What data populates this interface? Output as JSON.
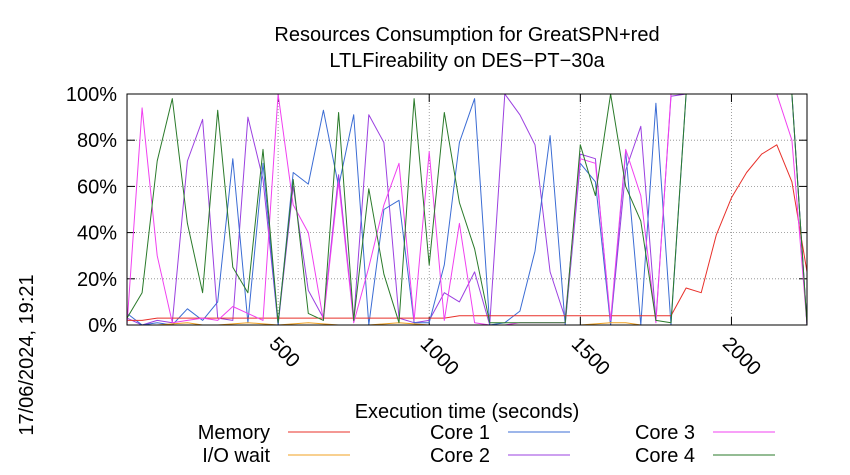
{
  "chart_data": {
    "type": "line",
    "title": "Resources Consumption for GreatSPN+red",
    "subtitle": "LTLFireability on DES−PT−30a",
    "xlabel": "Execution time (seconds)",
    "ylabel": "",
    "side_label": "17/06/2024, 19:21",
    "xlim": [
      0,
      2250
    ],
    "ylim": [
      0,
      100
    ],
    "x_ticks": [
      {
        "value": 500,
        "label": "500"
      },
      {
        "value": 1000,
        "label": "1000"
      },
      {
        "value": 1500,
        "label": "1500"
      },
      {
        "value": 2000,
        "label": "2000"
      }
    ],
    "y_ticks": [
      {
        "value": 0,
        "label": "0%"
      },
      {
        "value": 20,
        "label": "20%"
      },
      {
        "value": 40,
        "label": "40%"
      },
      {
        "value": 60,
        "label": "60%"
      },
      {
        "value": 80,
        "label": "80%"
      },
      {
        "value": 100,
        "label": "100%"
      }
    ],
    "grid": true,
    "legend_position": "bottom",
    "series": [
      {
        "name": "Memory",
        "color": "#e8302a",
        "x": [
          0,
          50,
          100,
          150,
          200,
          250,
          300,
          350,
          400,
          450,
          500,
          550,
          600,
          650,
          700,
          750,
          800,
          850,
          900,
          950,
          1000,
          1050,
          1100,
          1150,
          1200,
          1250,
          1300,
          1350,
          1400,
          1450,
          1500,
          1550,
          1600,
          1650,
          1700,
          1750,
          1800,
          1850,
          1900,
          1950,
          2000,
          2050,
          2100,
          2150,
          2200,
          2250
        ],
        "y": [
          2,
          2,
          3,
          3,
          3,
          3,
          3,
          3,
          3,
          3,
          3,
          3,
          3,
          3,
          3,
          3,
          3,
          3,
          3,
          3,
          3,
          3,
          4,
          4,
          4,
          4,
          4,
          4,
          4,
          4,
          4,
          4,
          4,
          4,
          4,
          4,
          4,
          16,
          14,
          39,
          55,
          66,
          74,
          78,
          62,
          23
        ]
      },
      {
        "name": "I/O wait",
        "color": "#f0a020",
        "x": [
          0,
          100,
          200,
          250,
          300,
          400,
          500,
          600,
          700,
          800,
          900,
          1000,
          1100,
          1200,
          1300,
          1400,
          1500,
          1600,
          1650,
          1700,
          1800,
          1900,
          2000,
          2100,
          2200,
          2250
        ],
        "y": [
          0,
          0,
          1,
          0,
          0,
          1,
          0,
          1,
          0,
          0,
          1,
          0,
          0,
          0,
          0,
          0,
          0,
          1,
          1,
          0,
          0,
          0,
          0,
          0,
          0,
          0
        ]
      },
      {
        "name": "Core 1",
        "color": "#3b6cd4",
        "x": [
          0,
          50,
          100,
          150,
          200,
          250,
          300,
          350,
          400,
          450,
          500,
          550,
          600,
          650,
          700,
          750,
          800,
          850,
          900,
          950,
          1000,
          1050,
          1100,
          1150,
          1200,
          1250,
          1300,
          1350,
          1400,
          1450,
          1500,
          1550,
          1600,
          1650,
          1700,
          1750,
          1800,
          1850,
          1900,
          1950,
          2000,
          2050,
          2100,
          2150,
          2200,
          2250
        ],
        "y": [
          5,
          0,
          1,
          0,
          7,
          2,
          10,
          72,
          1,
          70,
          0,
          66,
          61,
          93,
          60,
          91,
          0,
          50,
          54,
          1,
          1,
          26,
          79,
          98,
          0,
          1,
          6,
          32,
          82,
          0,
          70,
          62,
          0,
          75,
          0,
          96,
          0,
          100,
          100,
          100,
          100,
          100,
          100,
          100,
          100,
          0
        ]
      },
      {
        "name": "Core 2",
        "color": "#9b40e0",
        "x": [
          0,
          50,
          100,
          150,
          200,
          250,
          300,
          350,
          400,
          450,
          500,
          550,
          600,
          650,
          700,
          750,
          800,
          850,
          900,
          950,
          1000,
          1050,
          1100,
          1150,
          1200,
          1250,
          1300,
          1350,
          1400,
          1450,
          1500,
          1550,
          1600,
          1650,
          1700,
          1750,
          1800,
          1850,
          1900,
          1950,
          2000,
          2050,
          2100,
          2150,
          2200,
          2250
        ],
        "y": [
          3,
          0,
          2,
          1,
          71,
          89,
          3,
          2,
          90,
          63,
          0,
          60,
          15,
          3,
          65,
          2,
          91,
          79,
          3,
          1,
          2,
          14,
          10,
          23,
          0,
          100,
          91,
          78,
          23,
          3,
          74,
          72,
          0,
          67,
          86,
          2,
          99,
          100,
          100,
          100,
          100,
          100,
          100,
          100,
          100,
          0
        ]
      },
      {
        "name": "Core 3",
        "color": "#f040f0",
        "x": [
          0,
          50,
          100,
          150,
          200,
          250,
          300,
          350,
          400,
          450,
          500,
          550,
          600,
          650,
          700,
          750,
          800,
          850,
          900,
          950,
          1000,
          1050,
          1100,
          1150,
          1200,
          1250,
          1300,
          1350,
          1400,
          1450,
          1500,
          1550,
          1600,
          1650,
          1700,
          1750,
          1800,
          1850,
          1900,
          1950,
          2000,
          2050,
          2100,
          2150,
          2200,
          2250
        ],
        "y": [
          0,
          94,
          30,
          1,
          2,
          3,
          2,
          8,
          5,
          2,
          100,
          52,
          40,
          2,
          62,
          1,
          25,
          52,
          70,
          2,
          75,
          2,
          44,
          1,
          0,
          0,
          1,
          1,
          1,
          1,
          72,
          70,
          2,
          76,
          56,
          1,
          100,
          100,
          100,
          100,
          100,
          100,
          100,
          100,
          80,
          0
        ]
      },
      {
        "name": "Core 4",
        "color": "#2a7a2a",
        "x": [
          0,
          50,
          100,
          150,
          200,
          250,
          300,
          350,
          400,
          450,
          500,
          550,
          600,
          650,
          700,
          750,
          800,
          850,
          900,
          950,
          1000,
          1050,
          1100,
          1150,
          1200,
          1250,
          1300,
          1350,
          1400,
          1450,
          1500,
          1550,
          1600,
          1650,
          1700,
          1750,
          1800,
          1850,
          1900,
          1950,
          2000,
          2050,
          2100,
          2150,
          2200,
          2250
        ],
        "y": [
          3,
          14,
          71,
          98,
          44,
          14,
          93,
          25,
          14,
          76,
          1,
          63,
          5,
          2,
          92,
          2,
          59,
          22,
          1,
          98,
          26,
          92,
          53,
          33,
          1,
          1,
          1,
          1,
          1,
          1,
          78,
          56,
          100,
          60,
          45,
          2,
          1,
          100,
          100,
          100,
          100,
          100,
          100,
          100,
          100,
          0
        ]
      }
    ]
  }
}
